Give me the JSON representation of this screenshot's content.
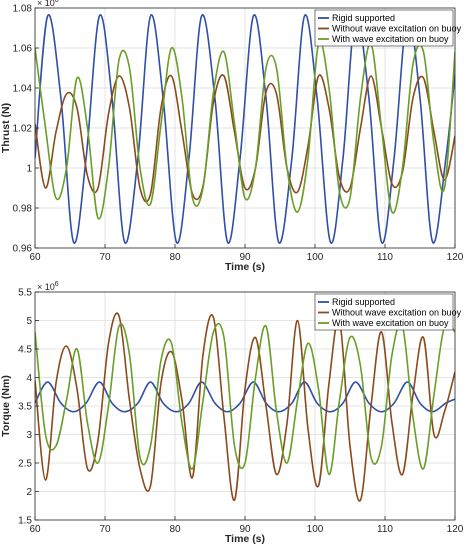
{
  "chart_data": [
    {
      "type": "line",
      "xlabel": "Time (s)",
      "ylabel": "Thrust (N)",
      "y_exponent": "× 10^6",
      "xlim": [
        60,
        120
      ],
      "ylim": [
        0.96,
        1.08
      ],
      "xticks": [
        "60",
        "70",
        "80",
        "90",
        "100",
        "110",
        "120"
      ],
      "yticks": [
        "0.96",
        "0.98",
        "1",
        "1.02",
        "1.04",
        "1.06",
        "1.08"
      ],
      "legend_position": "top-right",
      "grid": true,
      "series": [
        {
          "name": "Rigid supported",
          "color": "#2f4fa8",
          "x": [
            60.0,
            61.8,
            63.7,
            65.5,
            67.3,
            69.2,
            71.0,
            72.8,
            74.7,
            76.5,
            78.3,
            80.2,
            82.0,
            83.8,
            85.7,
            87.5,
            89.3,
            91.2,
            93.0,
            94.8,
            96.7,
            98.5,
            100.3,
            102.2,
            104.0,
            105.8,
            107.7,
            109.5,
            111.3,
            113.2,
            115.0,
            116.8,
            118.7,
            120.0
          ],
          "y": [
            1.005,
            1.076,
            1.035,
            0.963,
            1.005,
            1.076,
            1.035,
            0.963,
            1.005,
            1.076,
            1.035,
            0.963,
            1.005,
            1.076,
            1.035,
            0.963,
            1.005,
            1.076,
            1.035,
            0.963,
            1.005,
            1.076,
            1.035,
            0.963,
            1.005,
            1.076,
            1.035,
            0.963,
            1.005,
            1.076,
            1.035,
            0.963,
            1.005,
            1.047
          ]
        },
        {
          "name": "Without wave excitation on buoy",
          "color": "#8a4a1c",
          "x": [
            60.0,
            61.5,
            63.0,
            64.5,
            66.0,
            67.5,
            69.0,
            70.5,
            72.0,
            73.5,
            75.0,
            76.5,
            78.0,
            79.5,
            81.0,
            82.5,
            84.0,
            85.5,
            87.0,
            88.5,
            90.0,
            91.5,
            93.0,
            94.5,
            96.0,
            97.5,
            99.0,
            100.5,
            102.0,
            103.5,
            105.0,
            106.5,
            108.0,
            109.5,
            111.0,
            112.5,
            114.0,
            115.5,
            117.0,
            118.5,
            120.0
          ],
          "y": [
            1.022,
            0.99,
            1.018,
            1.037,
            1.03,
            0.996,
            0.99,
            1.027,
            1.046,
            1.03,
            0.99,
            0.987,
            1.03,
            1.046,
            1.018,
            0.987,
            0.991,
            1.033,
            1.046,
            1.018,
            0.99,
            1.0,
            1.038,
            1.037,
            1.0,
            0.988,
            1.011,
            1.046,
            1.03,
            0.995,
            0.99,
            1.02,
            1.046,
            1.02,
            0.992,
            0.998,
            1.035,
            1.045,
            1.018,
            0.994,
            1.016
          ]
        },
        {
          "name": "With wave excitation on buoy",
          "color": "#6a9e28",
          "x": [
            60.0,
            61.5,
            63.0,
            64.5,
            66.0,
            67.5,
            69.0,
            70.5,
            72.0,
            73.5,
            75.0,
            76.5,
            78.0,
            79.5,
            81.0,
            82.5,
            84.0,
            85.5,
            87.0,
            88.5,
            90.0,
            91.5,
            93.0,
            94.5,
            96.0,
            97.5,
            99.0,
            100.5,
            102.0,
            103.5,
            105.0,
            106.5,
            108.0,
            109.5,
            111.0,
            112.5,
            114.0,
            115.5,
            117.0,
            118.5,
            120.0
          ],
          "y": [
            1.06,
            1.02,
            0.985,
            1.0,
            1.045,
            1.02,
            0.975,
            1.0,
            1.054,
            1.05,
            1.0,
            0.982,
            1.022,
            1.06,
            1.035,
            0.985,
            0.99,
            1.038,
            1.058,
            1.022,
            0.985,
            1.0,
            1.05,
            1.05,
            1.0,
            0.978,
            1.005,
            1.062,
            1.04,
            0.988,
            0.985,
            1.035,
            1.062,
            1.02,
            0.978,
            1.0,
            1.052,
            1.058,
            1.012,
            0.99,
            1.058
          ]
        }
      ]
    },
    {
      "type": "line",
      "xlabel": "Time (s)",
      "ylabel": "Torque (Nm)",
      "y_exponent": "× 10^6",
      "xlim": [
        60,
        120
      ],
      "ylim": [
        1.5,
        5.5
      ],
      "xticks": [
        "60",
        "70",
        "80",
        "90",
        "100",
        "110",
        "120"
      ],
      "yticks": [
        "1.5",
        "2",
        "2.5",
        "3",
        "3.5",
        "4",
        "4.5",
        "5",
        "5.5"
      ],
      "legend_position": "top-right",
      "grid": true,
      "series": [
        {
          "name": "Rigid supported",
          "color": "#2f4fa8",
          "x": [
            60.0,
            61.8,
            63.7,
            65.5,
            67.3,
            69.2,
            71.0,
            72.8,
            74.7,
            76.5,
            78.3,
            80.2,
            82.0,
            83.8,
            85.7,
            87.5,
            89.3,
            91.2,
            93.0,
            94.8,
            96.7,
            98.5,
            100.3,
            102.2,
            104.0,
            105.8,
            107.7,
            109.5,
            111.3,
            113.2,
            115.0,
            116.8,
            118.7,
            120.0
          ],
          "y": [
            3.55,
            3.92,
            3.55,
            3.4,
            3.55,
            3.92,
            3.55,
            3.4,
            3.55,
            3.92,
            3.55,
            3.4,
            3.55,
            3.92,
            3.55,
            3.4,
            3.55,
            3.92,
            3.55,
            3.4,
            3.55,
            3.92,
            3.55,
            3.4,
            3.55,
            3.92,
            3.55,
            3.4,
            3.55,
            3.92,
            3.55,
            3.4,
            3.55,
            3.62
          ]
        },
        {
          "name": "Without wave excitation on buoy",
          "color": "#8a4a1c",
          "x": [
            60.0,
            61.5,
            63.0,
            64.5,
            66.0,
            67.5,
            69.0,
            70.5,
            72.0,
            73.5,
            75.0,
            76.5,
            78.0,
            79.5,
            81.0,
            82.5,
            84.0,
            85.5,
            87.0,
            88.5,
            90.0,
            91.5,
            93.0,
            94.5,
            96.0,
            97.5,
            99.0,
            100.5,
            102.0,
            103.5,
            105.0,
            106.5,
            108.0,
            109.5,
            111.0,
            112.5,
            114.0,
            115.5,
            117.0,
            118.5,
            120.0
          ],
          "y": [
            3.95,
            2.2,
            3.9,
            4.55,
            3.8,
            2.4,
            2.9,
            4.6,
            5.08,
            3.6,
            2.4,
            2.1,
            3.9,
            4.45,
            3.6,
            2.25,
            4.4,
            5.05,
            3.3,
            1.85,
            3.8,
            4.7,
            3.5,
            2.3,
            3.2,
            5.0,
            3.1,
            2.1,
            3.9,
            5.0,
            2.8,
            1.85,
            3.5,
            4.8,
            3.2,
            2.3,
            3.7,
            4.7,
            3.0,
            3.4,
            4.1
          ]
        },
        {
          "name": "With wave excitation on buoy",
          "color": "#6a9e28",
          "x": [
            60.0,
            61.5,
            63.0,
            64.5,
            66.0,
            67.5,
            69.0,
            70.5,
            72.0,
            73.5,
            75.0,
            76.5,
            78.0,
            79.5,
            81.0,
            82.5,
            84.0,
            85.5,
            87.0,
            88.5,
            90.0,
            91.5,
            93.0,
            94.5,
            96.0,
            97.5,
            99.0,
            100.5,
            102.0,
            103.5,
            105.0,
            106.5,
            108.0,
            109.5,
            111.0,
            112.5,
            114.0,
            115.5,
            117.0,
            118.5,
            120.0
          ],
          "y": [
            4.8,
            3.0,
            2.8,
            3.6,
            4.5,
            3.2,
            2.5,
            3.5,
            4.9,
            4.4,
            2.6,
            2.8,
            4.3,
            4.6,
            3.2,
            2.4,
            3.6,
            4.8,
            4.7,
            2.8,
            2.5,
            4.0,
            4.9,
            3.4,
            2.5,
            3.6,
            4.6,
            3.8,
            2.3,
            3.6,
            4.7,
            4.2,
            2.6,
            2.8,
            4.4,
            4.9,
            3.3,
            2.4,
            3.7,
            4.9,
            4.8
          ]
        }
      ]
    }
  ]
}
